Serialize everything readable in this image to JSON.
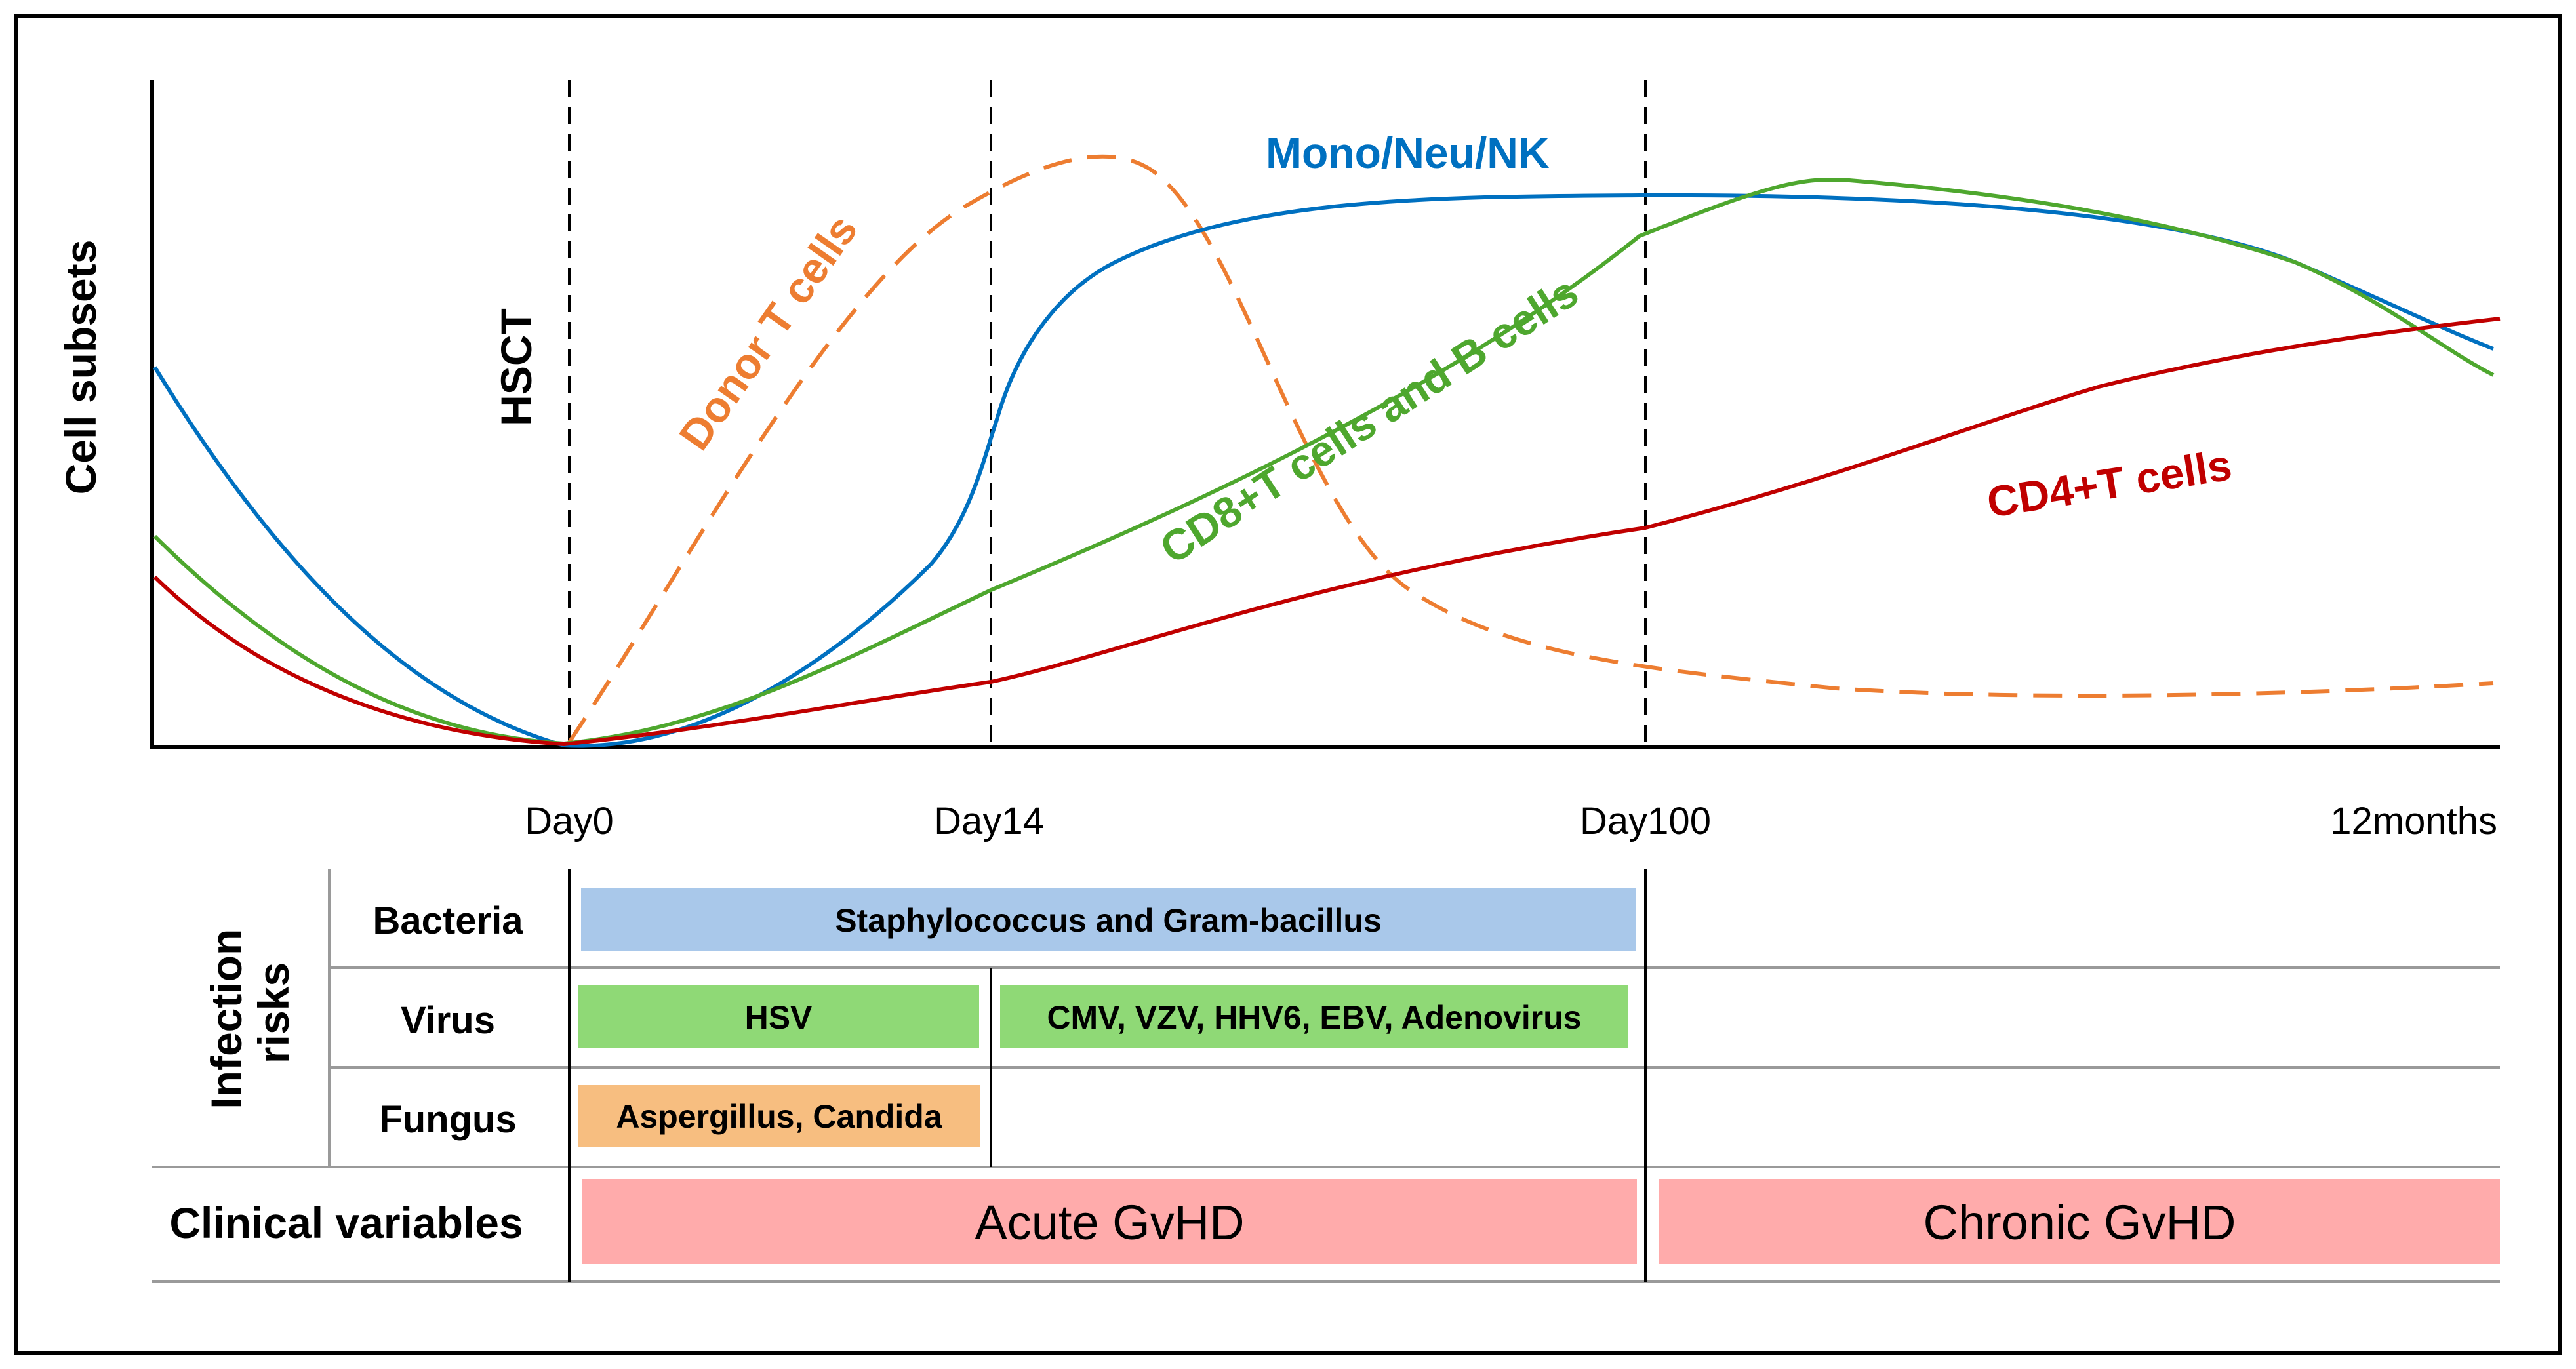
{
  "y_axis": {
    "label": "Cell subsets"
  },
  "hsct_label": "HSCT",
  "timepoints": [
    "Day0",
    "Day14",
    "Day100",
    "12months"
  ],
  "curves": [
    {
      "id": "donor-t",
      "label": "Donor T cells",
      "color": "#ED7D31",
      "style": "dashed"
    },
    {
      "id": "mono-neu-nk",
      "label": "Mono/Neu/NK",
      "color": "#0070C0",
      "style": "solid"
    },
    {
      "id": "cd8-b",
      "label": "CD8+T cells and B cells",
      "color": "#4EA72E",
      "style": "solid"
    },
    {
      "id": "cd4-t",
      "label": "CD4+T cells",
      "color": "#C00000",
      "style": "solid"
    }
  ],
  "infection": {
    "title_line1": "Infection",
    "title_line2": "risks",
    "rows": [
      {
        "label": "Bacteria",
        "bars": [
          {
            "text": "Staphylococcus and Gram-bacillus",
            "color": "#A9C8EA"
          }
        ]
      },
      {
        "label": "Virus",
        "bars": [
          {
            "text": "HSV",
            "color": "#8FD976"
          },
          {
            "text": "CMV, VZV, HHV6, EBV, Adenovirus",
            "color": "#8FD976"
          }
        ]
      },
      {
        "label": "Fungus",
        "bars": [
          {
            "text": "Aspergillus, Candida",
            "color": "#F7BE80"
          }
        ]
      }
    ]
  },
  "clinical": {
    "label": "Clinical variables",
    "bars": [
      {
        "text": "Acute GvHD",
        "color": "#FFABAB"
      },
      {
        "text": "Chronic GvHD",
        "color": "#FFABAB"
      }
    ]
  }
}
